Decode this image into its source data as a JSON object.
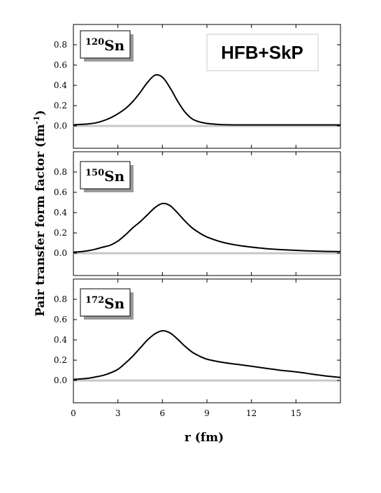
{
  "chart_data": {
    "type": "line",
    "ylabel": "Pair transfer form factor",
    "ylabel_unit_base": "fm",
    "ylabel_unit_exp": "-1",
    "xlabel": "r (fm)",
    "annotation": "HFB+SkP",
    "xlim": [
      0,
      18
    ],
    "ylim": [
      -0.22,
      1.0
    ],
    "x_ticks": [
      "0",
      "3",
      "6",
      "9",
      "12",
      "15"
    ],
    "y_ticks": [
      "0.0",
      "0.2",
      "0.4",
      "0.6",
      "0.8"
    ],
    "zero_line": true,
    "panels": [
      {
        "nucleus_mass": "120",
        "nucleus_symbol": "Sn",
        "series": [
          {
            "x": [
              0,
              0.5,
              1,
              1.5,
              2,
              2.5,
              3,
              3.5,
              4,
              4.5,
              5,
              5.5,
              6,
              6.5,
              7,
              7.5,
              8,
              8.5,
              9,
              9.5,
              10,
              11,
              12,
              13,
              14,
              15,
              16,
              17,
              18
            ],
            "y": [
              0.01,
              0.015,
              0.02,
              0.03,
              0.05,
              0.08,
              0.12,
              0.17,
              0.24,
              0.33,
              0.43,
              0.5,
              0.48,
              0.38,
              0.25,
              0.14,
              0.07,
              0.04,
              0.025,
              0.018,
              0.013,
              0.01,
              0.01,
              0.01,
              0.01,
              0.01,
              0.01,
              0.01,
              0.01
            ]
          }
        ]
      },
      {
        "nucleus_mass": "150",
        "nucleus_symbol": "Sn",
        "series": [
          {
            "x": [
              0,
              0.5,
              1,
              1.5,
              2,
              2.5,
              3,
              3.5,
              4,
              4.5,
              5,
              5.5,
              6,
              6.5,
              7,
              7.5,
              8,
              8.5,
              9,
              10,
              11,
              12,
              13,
              14,
              15,
              16,
              17,
              18
            ],
            "y": [
              0.01,
              0.015,
              0.025,
              0.04,
              0.06,
              0.08,
              0.12,
              0.18,
              0.25,
              0.31,
              0.38,
              0.45,
              0.49,
              0.47,
              0.4,
              0.32,
              0.25,
              0.2,
              0.16,
              0.11,
              0.08,
              0.06,
              0.045,
              0.035,
              0.028,
              0.022,
              0.018,
              0.015
            ]
          }
        ]
      },
      {
        "nucleus_mass": "172",
        "nucleus_symbol": "Sn",
        "series": [
          {
            "x": [
              0,
              0.5,
              1,
              1.5,
              2,
              2.5,
              3,
              3.5,
              4,
              4.5,
              5,
              5.5,
              6,
              6.5,
              7,
              7.5,
              8,
              8.5,
              9,
              10,
              11,
              12,
              13,
              14,
              15,
              16,
              17,
              18
            ],
            "y": [
              0.01,
              0.015,
              0.022,
              0.035,
              0.05,
              0.075,
              0.11,
              0.17,
              0.24,
              0.32,
              0.4,
              0.46,
              0.49,
              0.47,
              0.41,
              0.34,
              0.28,
              0.24,
              0.21,
              0.18,
              0.16,
              0.14,
              0.12,
              0.1,
              0.085,
              0.065,
              0.045,
              0.03
            ]
          }
        ]
      }
    ]
  }
}
